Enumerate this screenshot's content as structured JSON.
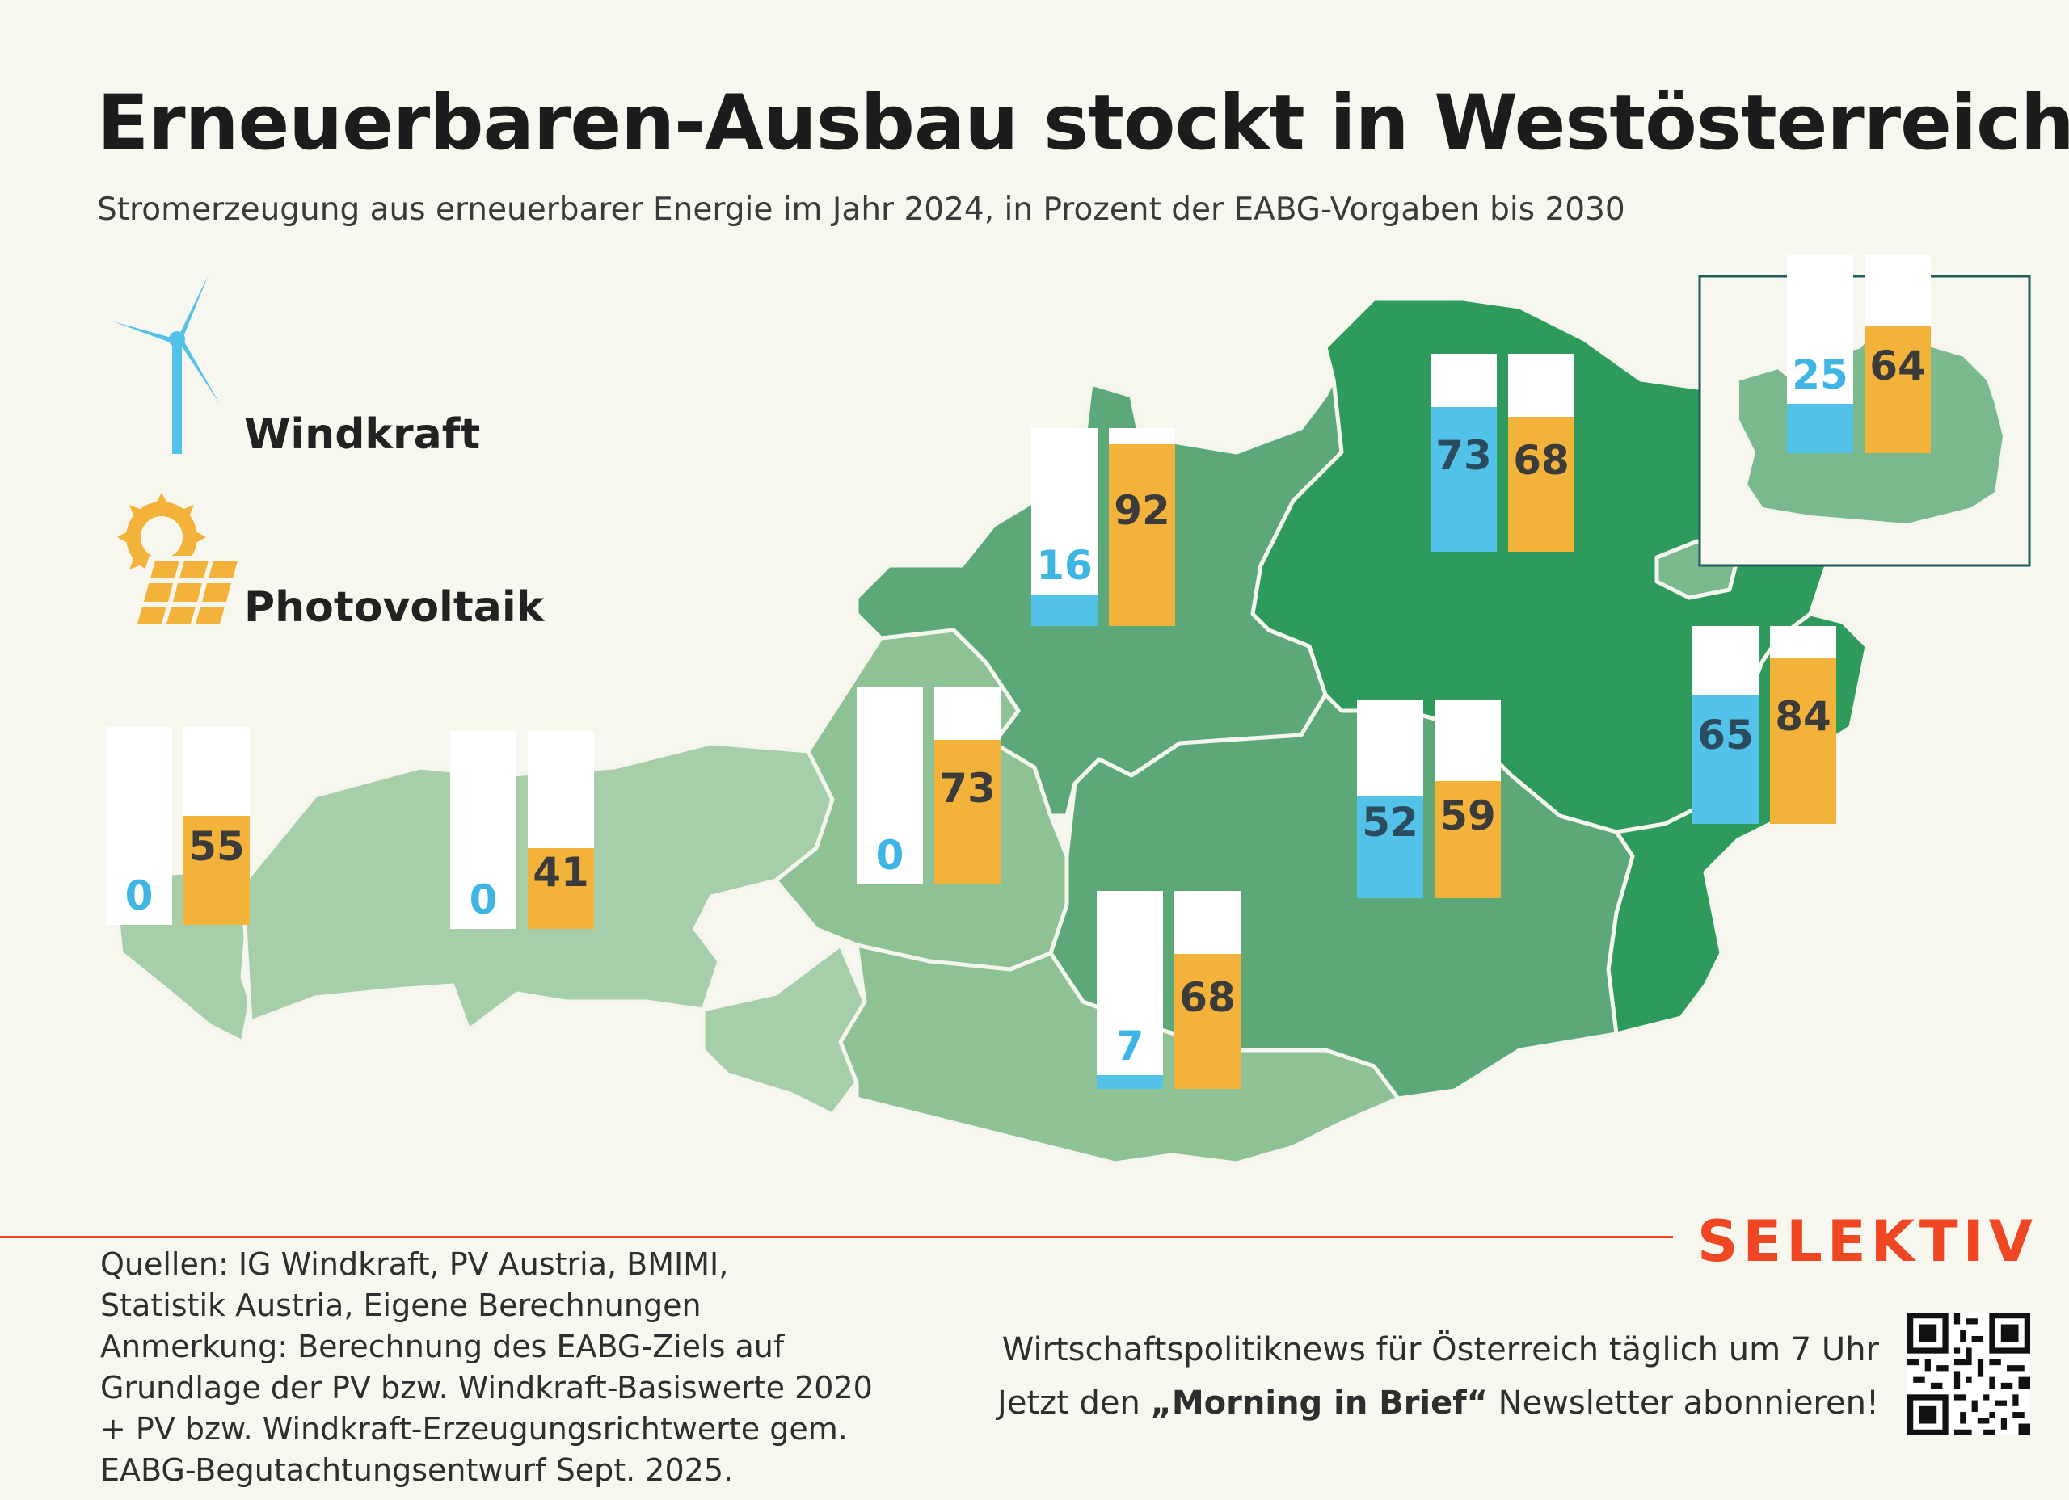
{
  "title": "Erneuerbaren-Ausbau stockt in Westösterreich",
  "subtitle": "Stromerzeugung aus erneuerbarer Energie im Jahr 2024, in Prozent der EABG-Vorgaben bis 2030",
  "legend": {
    "wind": {
      "label": "Windkraft",
      "icon": "wind-turbine-icon",
      "color": "#53c2e8"
    },
    "pv": {
      "label": "Photovoltaik",
      "icon": "solar-panel-icon",
      "color": "#f3b33b"
    }
  },
  "regions": [
    {
      "id": "vorarlberg",
      "wind": 0,
      "pv": 55
    },
    {
      "id": "tirol",
      "wind": 0,
      "pv": 41
    },
    {
      "id": "salzburg",
      "wind": 0,
      "pv": 73
    },
    {
      "id": "oberoesterreich",
      "wind": 16,
      "pv": 92
    },
    {
      "id": "niederoesterreich",
      "wind": 73,
      "pv": 68
    },
    {
      "id": "wien",
      "wind": 25,
      "pv": 64
    },
    {
      "id": "burgenland",
      "wind": 65,
      "pv": 84
    },
    {
      "id": "steiermark",
      "wind": 52,
      "pv": 59
    },
    {
      "id": "kaernten",
      "wind": 7,
      "pv": 68
    }
  ],
  "sources": [
    "Quellen: IG Windkraft, PV Austria, BMIMI,",
    "Statistik Austria, Eigene Berechnungen",
    "Anmerkung: Berechnung des EABG-Ziels auf",
    "Grundlage der PV bzw. Windkraft-Basiswerte 2020",
    "+ PV bzw. Windkraft-Erzeugungsrichtwerte gem.",
    "EABG-Begutachtungsentwurf Sept. 2025."
  ],
  "brand": "SELEKTIV",
  "promo": {
    "line1": "Wirtschaftspolitiknews für Österreich täglich um 7 Uhr",
    "line2_pre": "Jetzt den ",
    "line2_bold": "„Morning in Brief“",
    "line2_post": " Newsletter abonnieren!"
  },
  "colors": {
    "accent": "#ef4723",
    "background": "#f8f7ef"
  }
}
